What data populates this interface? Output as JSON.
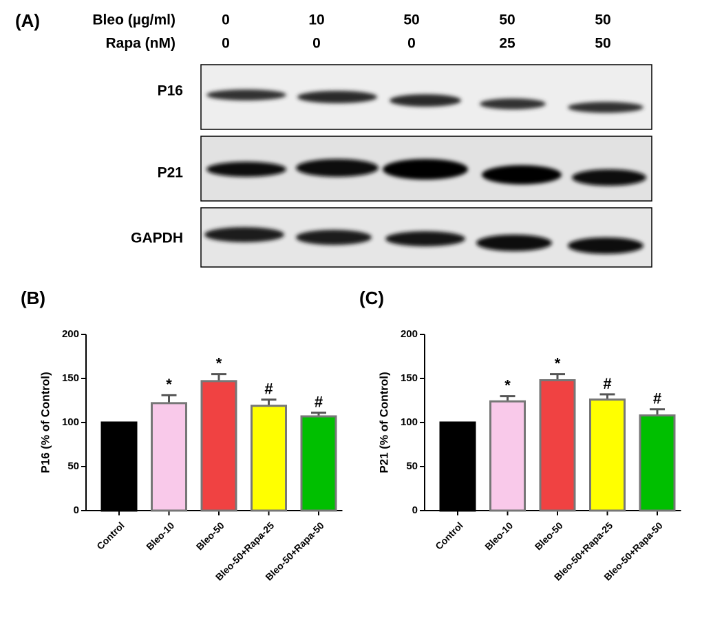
{
  "panel_a": {
    "label": "(A)",
    "rows": [
      {
        "label": "Bleo (µg/ml)",
        "values": [
          0,
          10,
          50,
          50,
          50
        ]
      },
      {
        "label": "Rapa (nM)",
        "values": [
          0,
          0,
          0,
          25,
          50
        ]
      }
    ],
    "bands": [
      "P16",
      "P21",
      "GAPDH"
    ]
  },
  "chart_data": [
    {
      "type": "bar",
      "panel_label": "(B)",
      "ylabel": "P16 (% of Control)",
      "categories": [
        "Control",
        "Bleo-10",
        "Bleo-50",
        "Bleo-50+Rapa-25",
        "Bleo-50+Rapa-50"
      ],
      "values": [
        100,
        122,
        147,
        119,
        107
      ],
      "errors": [
        null,
        9,
        8,
        7,
        4
      ],
      "annotations": [
        null,
        "*",
        "*",
        "#",
        "#"
      ],
      "colors": [
        "#000000",
        "#f9c9ea",
        "#f04242",
        "#ffff00",
        "#00bf00"
      ],
      "ylim": [
        0,
        200
      ],
      "yticks": [
        0,
        50,
        100,
        150,
        200
      ]
    },
    {
      "type": "bar",
      "panel_label": "(C)",
      "ylabel": "P21 (% of Control)",
      "categories": [
        "Control",
        "Bleo-10",
        "Bleo-50",
        "Bleo-50+Rapa-25",
        "Bleo-50+Rapa-50"
      ],
      "values": [
        100,
        124,
        148,
        126,
        108
      ],
      "errors": [
        null,
        6,
        7,
        6,
        7
      ],
      "annotations": [
        null,
        "*",
        "*",
        "#",
        "#"
      ],
      "colors": [
        "#000000",
        "#f9c9ea",
        "#f04242",
        "#ffff00",
        "#00bf00"
      ],
      "ylim": [
        0,
        200
      ],
      "yticks": [
        0,
        50,
        100,
        150,
        200
      ]
    }
  ]
}
